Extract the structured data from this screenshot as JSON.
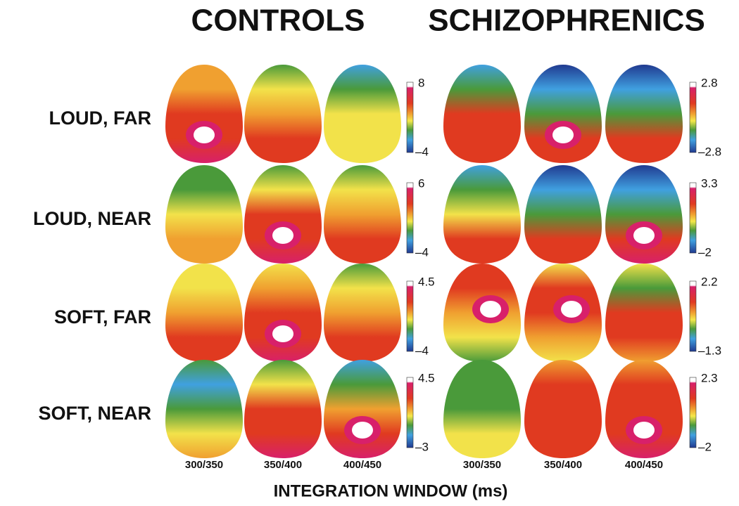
{
  "headers": [
    "CONTROLS",
    "SCHIZOPHRENICS"
  ],
  "rows": [
    {
      "label": "LOUD, FAR",
      "scales": [
        [
          "8",
          "–4"
        ],
        [
          "2.8",
          "–2.8"
        ]
      ]
    },
    {
      "label": "LOUD, NEAR",
      "scales": [
        [
          "6",
          "–4"
        ],
        [
          "3.3",
          "–2"
        ]
      ]
    },
    {
      "label": "SOFT, FAR",
      "scales": [
        [
          "4.5",
          "–4"
        ],
        [
          "2.2",
          "–1.3"
        ]
      ]
    },
    {
      "label": "SOFT, NEAR",
      "scales": [
        [
          "4.5",
          "–3"
        ],
        [
          "2.3",
          "–2"
        ]
      ]
    }
  ],
  "columns": [
    "300/350",
    "350/400",
    "400/450",
    "300/350",
    "350/400",
    "400/450"
  ],
  "axis_title": "INTEGRATION WINDOW (ms)"
}
